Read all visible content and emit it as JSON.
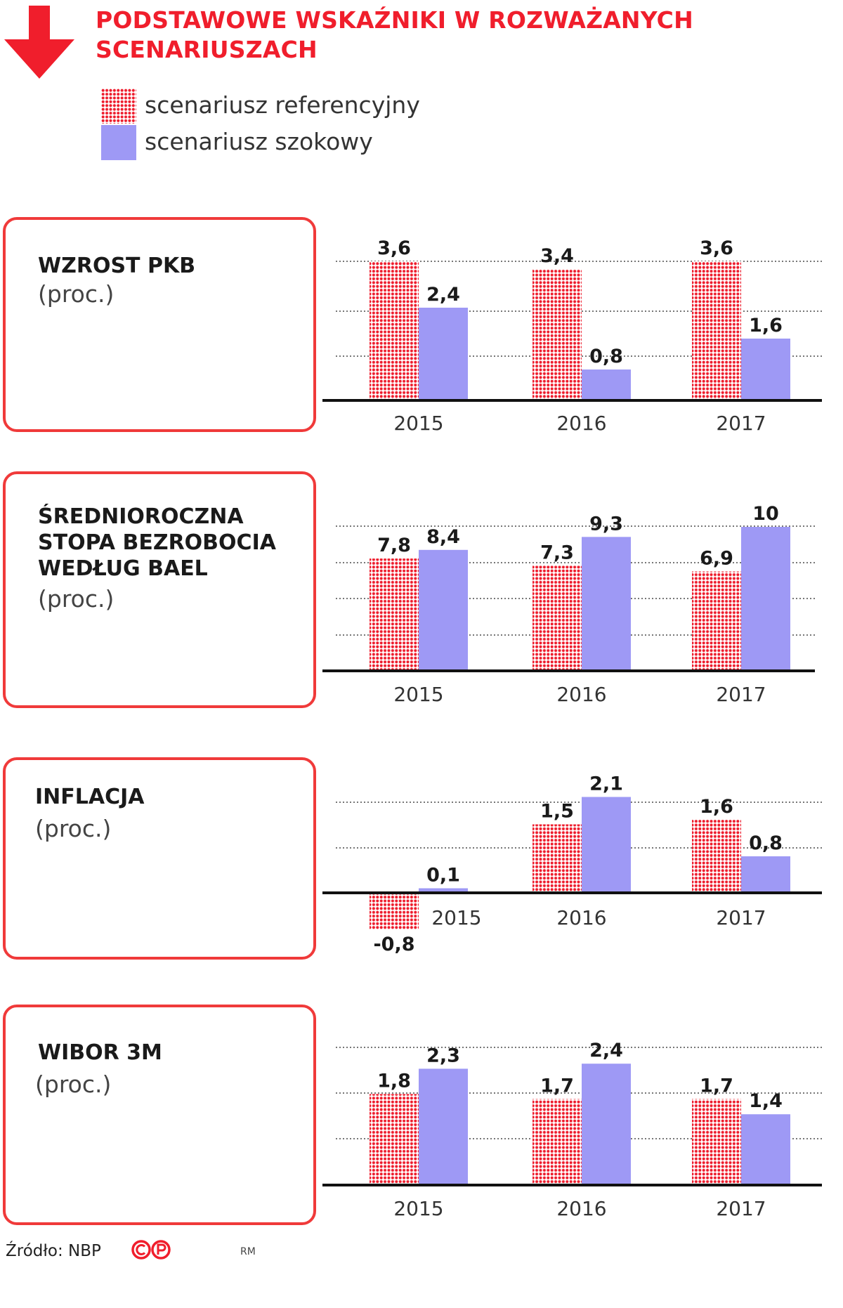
{
  "header": {
    "title_line1": "PODSTAWOWE WSKAŹNIKI W ROZWAŻANYCH",
    "title_line2": "SCENARIUSZACH"
  },
  "legend": {
    "reference_label": "scenariusz referencyjny",
    "shock_label": "scenariusz szokowy"
  },
  "colors": {
    "accent_red": "#f01e2c",
    "reference_dots": "#ee1c2c",
    "shock_bar": "#9e99f5",
    "panel_border": "#f03a3a"
  },
  "panels": [
    {
      "title": "WZROST PKB",
      "unit": "(proc.)"
    },
    {
      "title": "ŚREDNIOROCZNA\nSTOPA BEZROBOCIA\nWEDŁUG BAEL",
      "unit": "(proc.)"
    },
    {
      "title": "INFLACJA",
      "unit": "(proc.)"
    },
    {
      "title": "WIBOR 3M",
      "unit": "(proc.)"
    }
  ],
  "chart_data": [
    {
      "type": "bar",
      "title": "WZROST PKB",
      "ylabel": "(proc.)",
      "categories": [
        "2015",
        "2016",
        "2017"
      ],
      "series": [
        {
          "name": "scenariusz referencyjny",
          "values": [
            3.6,
            3.4,
            3.6
          ],
          "labels": [
            "3,6",
            "3,4",
            "3,6"
          ]
        },
        {
          "name": "scenariusz szokowy",
          "values": [
            2.4,
            0.8,
            1.6
          ],
          "labels": [
            "2,4",
            "0,8",
            "1,6"
          ]
        }
      ],
      "ylim": [
        0,
        4
      ],
      "grid": true
    },
    {
      "type": "bar",
      "title": "ŚREDNIOROCZNA STOPA BEZROBOCIA WEDŁUG BAEL",
      "ylabel": "(proc.)",
      "categories": [
        "2015",
        "2016",
        "2017"
      ],
      "series": [
        {
          "name": "scenariusz referencyjny",
          "values": [
            7.8,
            7.3,
            6.9
          ],
          "labels": [
            "7,8",
            "7,3",
            "6,9"
          ]
        },
        {
          "name": "scenariusz szokowy",
          "values": [
            8.4,
            9.3,
            10
          ],
          "labels": [
            "8,4",
            "9,3",
            "10"
          ]
        }
      ],
      "ylim": [
        0,
        10
      ],
      "grid": true
    },
    {
      "type": "bar",
      "title": "INFLACJA",
      "ylabel": "(proc.)",
      "categories": [
        "2015",
        "2016",
        "2017"
      ],
      "series": [
        {
          "name": "scenariusz referencyjny",
          "values": [
            -0.8,
            1.5,
            1.6
          ],
          "labels": [
            "-0,8",
            "1,5",
            "1,6"
          ]
        },
        {
          "name": "scenariusz szokowy",
          "values": [
            0.1,
            2.1,
            0.8
          ],
          "labels": [
            "0,1",
            "2,1",
            "0,8"
          ]
        }
      ],
      "ylim": [
        -1,
        2
      ],
      "grid": true
    },
    {
      "type": "bar",
      "title": "WIBOR 3M",
      "ylabel": "(proc.)",
      "categories": [
        "2015",
        "2016",
        "2017"
      ],
      "series": [
        {
          "name": "scenariusz referencyjny",
          "values": [
            1.8,
            1.7,
            1.7
          ],
          "labels": [
            "1,8",
            "1,7",
            "1,7"
          ]
        },
        {
          "name": "scenariusz szokowy",
          "values": [
            2.3,
            2.4,
            1.4
          ],
          "labels": [
            "2,3",
            "2,4",
            "1,4"
          ]
        }
      ],
      "ylim": [
        0,
        2.5
      ],
      "grid": true
    }
  ],
  "footer": {
    "source": "Źródło: NBP",
    "author": "RM",
    "license_icon": "copyright-icon"
  }
}
